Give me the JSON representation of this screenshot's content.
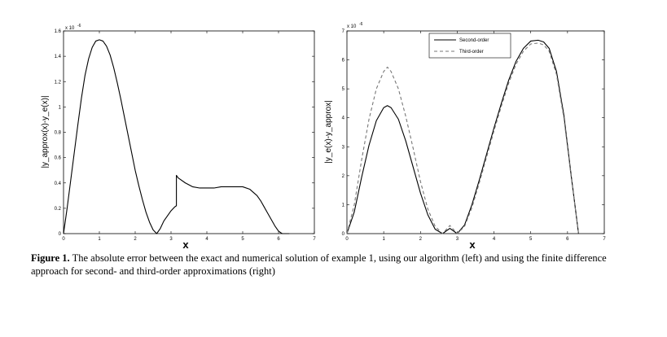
{
  "chart_data": [
    {
      "type": "line",
      "xlabel": "x",
      "ylabel": "|y_approx(x)-y_e(x)|",
      "exponent_label": "x 10",
      "exponent_power": "-6",
      "xlim": [
        0,
        7
      ],
      "ylim": [
        0,
        1.6
      ],
      "x_ticks": [
        "0",
        "1",
        "2",
        "3",
        "4",
        "5",
        "6",
        "7"
      ],
      "y_ticks": [
        "0",
        "0.2",
        "0.4",
        "0.6",
        "0.8",
        "1",
        "1.2",
        "1.4",
        "1.6"
      ],
      "series": [
        {
          "color": "#000000",
          "dash": "none",
          "x": [
            0,
            0.1,
            0.2,
            0.3,
            0.4,
            0.5,
            0.6,
            0.7,
            0.8,
            0.9,
            1.0,
            1.1,
            1.2,
            1.3,
            1.4,
            1.5,
            1.6,
            1.7,
            1.8,
            1.9,
            2.0,
            2.1,
            2.2,
            2.3,
            2.4,
            2.5,
            2.6,
            2.7,
            2.8,
            2.9,
            3.0,
            3.1,
            3.15,
            3.15,
            3.2,
            3.4,
            3.6,
            3.8,
            4.0,
            4.2,
            4.4,
            4.6,
            4.8,
            5.0,
            5.2,
            5.4,
            5.5,
            5.6,
            5.7,
            5.8,
            5.9,
            6.0,
            6.1,
            6.2,
            6.3
          ],
          "y": [
            0,
            0.2,
            0.42,
            0.64,
            0.86,
            1.07,
            1.25,
            1.38,
            1.47,
            1.52,
            1.53,
            1.52,
            1.48,
            1.41,
            1.31,
            1.19,
            1.06,
            0.92,
            0.78,
            0.64,
            0.5,
            0.38,
            0.27,
            0.17,
            0.09,
            0.03,
            0.0,
            0.04,
            0.1,
            0.14,
            0.18,
            0.21,
            0.22,
            0.46,
            0.44,
            0.4,
            0.37,
            0.36,
            0.36,
            0.36,
            0.37,
            0.37,
            0.37,
            0.37,
            0.35,
            0.3,
            0.26,
            0.21,
            0.16,
            0.11,
            0.06,
            0.02,
            0.0,
            0.0,
            0.0
          ]
        }
      ]
    },
    {
      "type": "line",
      "xlabel": "x",
      "ylabel": "|y_e(x)-y_approx|",
      "exponent_label": "x 10",
      "exponent_power": "-6",
      "xlim": [
        0,
        7
      ],
      "ylim": [
        0,
        7
      ],
      "x_ticks": [
        "0",
        "1",
        "2",
        "3",
        "4",
        "5",
        "6",
        "7"
      ],
      "y_ticks": [
        "0",
        "1",
        "2",
        "3",
        "4",
        "5",
        "6",
        "7"
      ],
      "legend": {
        "position": "top-right"
      },
      "series": [
        {
          "name": "Second-order",
          "color": "#000000",
          "dash": "none",
          "x": [
            0,
            0.2,
            0.4,
            0.6,
            0.8,
            1.0,
            1.1,
            1.2,
            1.4,
            1.6,
            1.8,
            2.0,
            2.2,
            2.4,
            2.6,
            2.8,
            3.0,
            3.2,
            3.4,
            3.6,
            3.8,
            4.0,
            4.2,
            4.4,
            4.6,
            4.8,
            5.0,
            5.2,
            5.35,
            5.5,
            5.7,
            5.9,
            6.1,
            6.3
          ],
          "y": [
            0,
            0.75,
            1.95,
            3.05,
            3.9,
            4.35,
            4.42,
            4.35,
            3.95,
            3.2,
            2.3,
            1.4,
            0.65,
            0.15,
            0.0,
            0.18,
            0.0,
            0.3,
            1.0,
            1.85,
            2.75,
            3.65,
            4.5,
            5.3,
            5.95,
            6.4,
            6.65,
            6.68,
            6.62,
            6.4,
            5.6,
            4.1,
            2.0,
            0.0
          ]
        },
        {
          "name": "Third-order",
          "color": "#777777",
          "dash": "4,3",
          "x": [
            0,
            0.2,
            0.4,
            0.6,
            0.8,
            1.0,
            1.1,
            1.2,
            1.4,
            1.6,
            1.8,
            2.0,
            2.2,
            2.4,
            2.6,
            2.8,
            3.0,
            3.2,
            3.4,
            3.6,
            3.8,
            4.0,
            4.2,
            4.4,
            4.6,
            4.8,
            5.0,
            5.2,
            5.35,
            5.5,
            5.7,
            5.9,
            6.1,
            6.3
          ],
          "y": [
            0,
            1.0,
            2.55,
            3.95,
            5.0,
            5.6,
            5.75,
            5.6,
            5.0,
            4.05,
            2.95,
            1.8,
            0.85,
            0.25,
            0.0,
            0.28,
            0.0,
            0.25,
            0.9,
            1.75,
            2.65,
            3.55,
            4.4,
            5.2,
            5.85,
            6.3,
            6.55,
            6.58,
            6.52,
            6.3,
            5.5,
            4.0,
            1.95,
            0.0
          ]
        }
      ]
    }
  ],
  "caption": {
    "label": "Figure   1.",
    "text": " The absolute error between the exact and numerical solution of example 1, using our algorithm (left) and using the finite difference approach for second- and third-order approximations (right)"
  }
}
